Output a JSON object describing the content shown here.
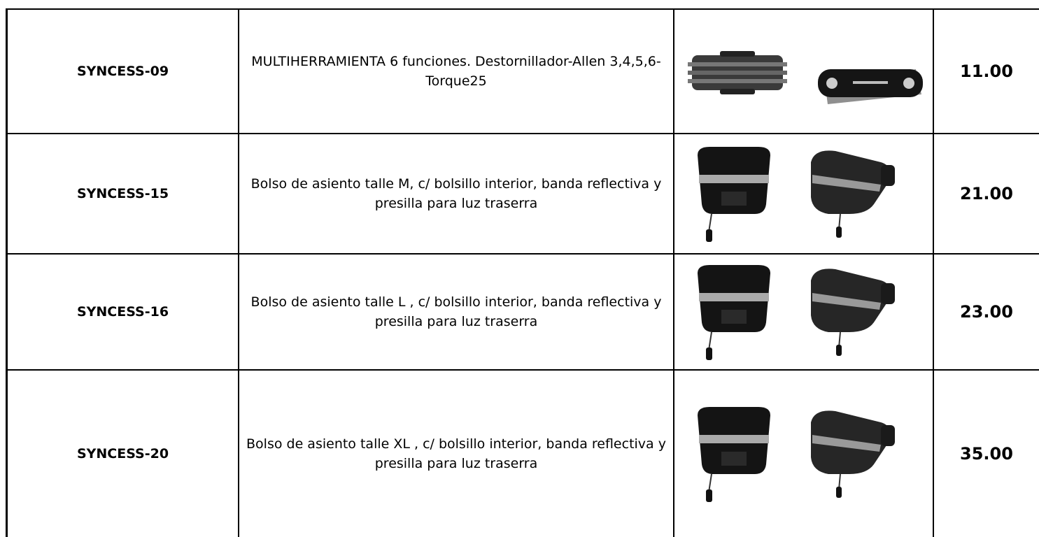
{
  "table": {
    "rows": [
      {
        "code": "SYNCESS-09",
        "description": "MULTIHERRAMIENTA 6 funciones. Destornillador-Allen 3,4,5,6-Torque25",
        "price": "11.00"
      },
      {
        "code": "SYNCESS-15",
        "description": "Bolso de asiento talle M, c/ bolsillo interior, banda reflectiva y presilla para luz traserra",
        "price": "21.00"
      },
      {
        "code": "SYNCESS-16",
        "description": "Bolso de asiento talle L , c/ bolsillo interior, banda reflectiva y presilla para luz traserra",
        "price": "23.00"
      },
      {
        "code": "SYNCESS-20",
        "description": "Bolso de asiento talle XL , c/ bolsillo interior, banda reflectiva y presilla para luz traserra",
        "price": "35.00"
      }
    ]
  }
}
